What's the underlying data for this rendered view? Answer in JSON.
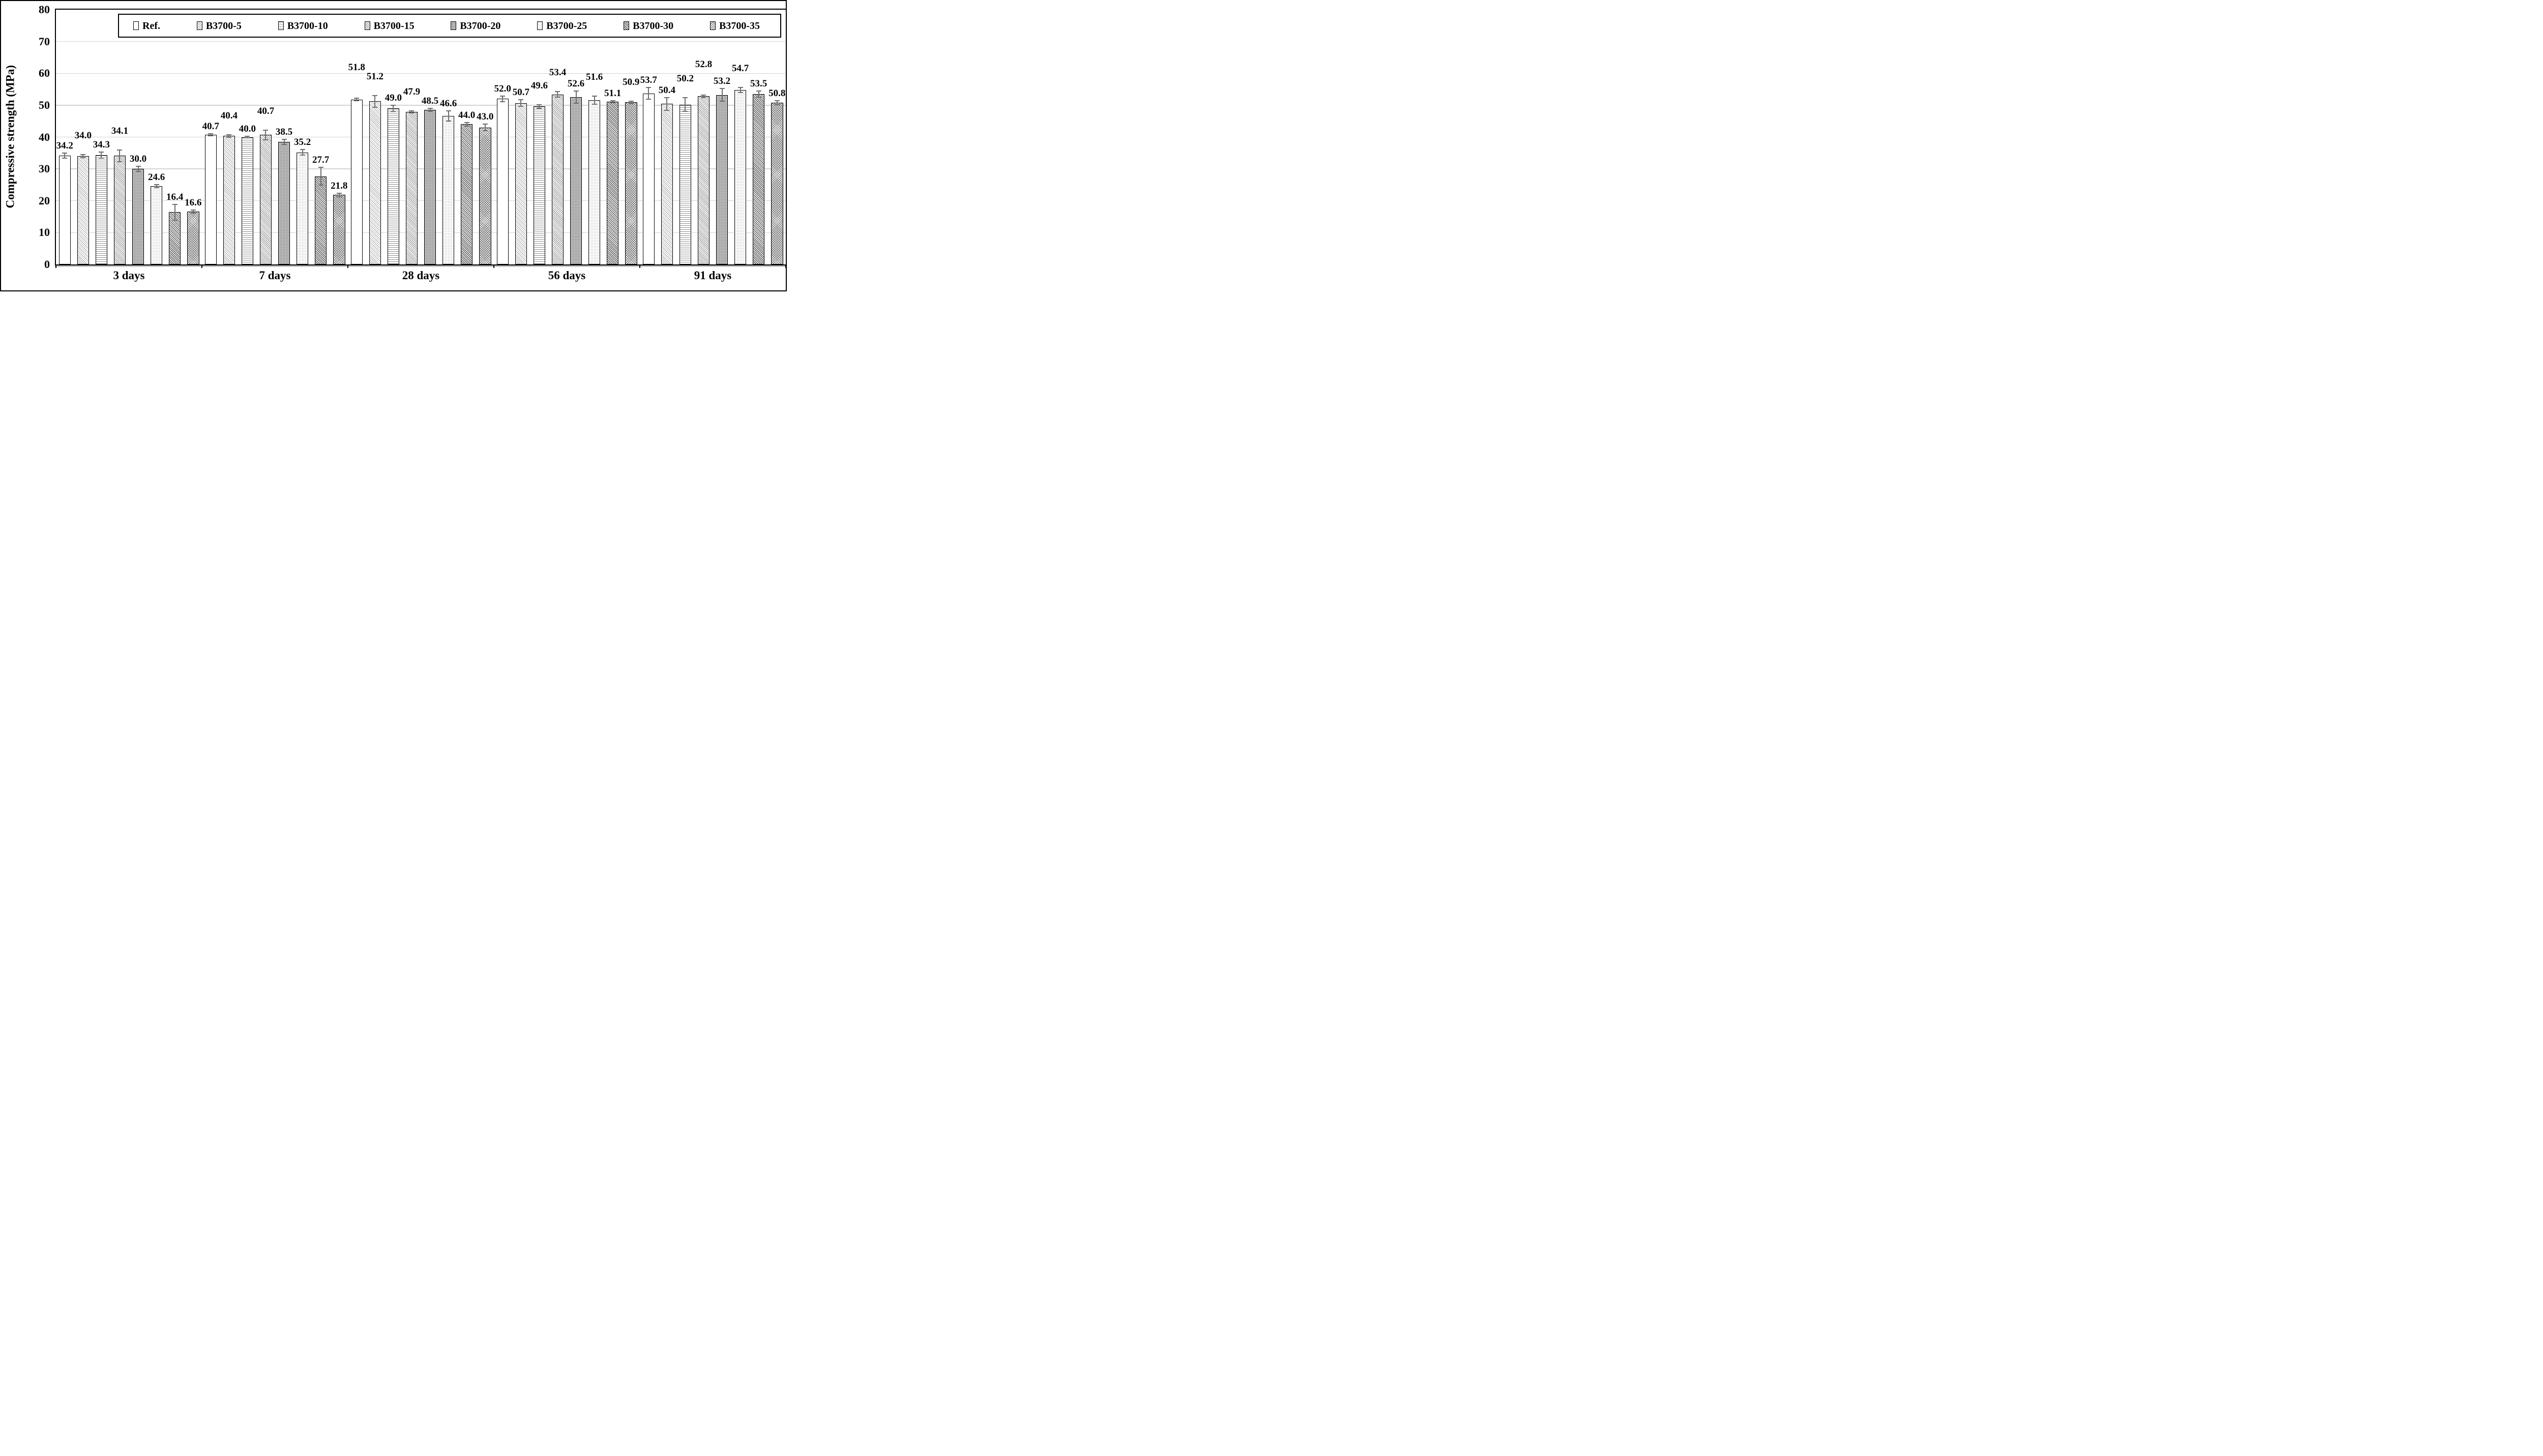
{
  "figure": {
    "type_hint": "bar-chart-figure",
    "background": "#ffffff",
    "border_color": "#000000"
  },
  "axes": {
    "ylabel": "Compressive strength (MPa)",
    "yticks": [
      "0",
      "10",
      "20",
      "30",
      "40",
      "50",
      "60",
      "70",
      "80"
    ],
    "xticks": [
      "3 days",
      "7 days",
      "28 days",
      "56 days",
      "91 days"
    ]
  },
  "colors": {
    "gridline": "#d4d4d4",
    "error_bar": "#6e6e6e",
    "axis": "#000000",
    "bar_border": "#000000"
  },
  "chart_data": {
    "type": "bar",
    "title": "",
    "xlabel": "",
    "ylabel": "Compressive strength (MPa)",
    "ylim": [
      0,
      80
    ],
    "ytick_step": 10,
    "grid": "horizontal",
    "legend_position": "top-inside",
    "value_labels_shown": true,
    "value_label_format": "0.0",
    "error_bars_shown": true,
    "categories": [
      "3 days",
      "7 days",
      "28 days",
      "56 days",
      "91 days"
    ],
    "series": [
      {
        "name": "Ref.",
        "pattern": "plain-white",
        "values": [
          34.2,
          40.7,
          51.8,
          52.0,
          53.7
        ],
        "errors": [
          0.8,
          0.3,
          0.4,
          0.9,
          1.8
        ]
      },
      {
        "name": "B3700-5",
        "pattern": "diagonal-hatch-light",
        "values": [
          34.0,
          40.4,
          51.2,
          50.7,
          50.4
        ],
        "errors": [
          0.5,
          0.4,
          1.8,
          1.0,
          2.0
        ]
      },
      {
        "name": "B3700-10",
        "pattern": "horizontal-lines",
        "values": [
          34.3,
          40.0,
          49.0,
          49.6,
          50.2
        ],
        "errors": [
          1.0,
          0.3,
          1.0,
          0.5,
          2.1
        ]
      },
      {
        "name": "B3700-15",
        "pattern": "diagonal-hatch",
        "values": [
          34.1,
          40.7,
          47.9,
          53.4,
          52.8
        ],
        "errors": [
          1.9,
          1.5,
          0.3,
          0.9,
          0.4
        ]
      },
      {
        "name": "B3700-20",
        "pattern": "dots-dark",
        "values": [
          30.0,
          38.5,
          48.5,
          52.6,
          53.2
        ],
        "errors": [
          0.8,
          0.8,
          0.5,
          1.9,
          2.0
        ]
      },
      {
        "name": "B3700-25",
        "pattern": "dots-light",
        "values": [
          24.6,
          35.2,
          46.6,
          51.6,
          54.7
        ],
        "errors": [
          0.5,
          0.9,
          1.6,
          1.3,
          0.8
        ]
      },
      {
        "name": "B3700-30",
        "pattern": "diagonal-hatch-dark",
        "values": [
          16.4,
          27.7,
          44.0,
          51.1,
          53.5
        ],
        "errors": [
          2.5,
          2.8,
          0.6,
          0.3,
          0.9
        ]
      },
      {
        "name": "B3700-35",
        "pattern": "crosshatch",
        "values": [
          16.6,
          21.8,
          43.0,
          50.9,
          50.8
        ],
        "errors": [
          0.5,
          0.5,
          1.0,
          0.4,
          0.6
        ]
      }
    ],
    "label_tiers_by_category": {
      "3 days": [
        0,
        1,
        0,
        1,
        0,
        0,
        0,
        0
      ],
      "7 days": [
        0,
        1,
        0,
        1,
        0,
        0,
        0,
        0
      ],
      "28 days": [
        2,
        1,
        0,
        1,
        0,
        0,
        0,
        0
      ],
      "56 days": [
        0,
        0,
        1,
        1,
        0,
        1,
        0,
        1
      ],
      "91 days": [
        0,
        0,
        1,
        2,
        0,
        1,
        0,
        0
      ]
    }
  }
}
